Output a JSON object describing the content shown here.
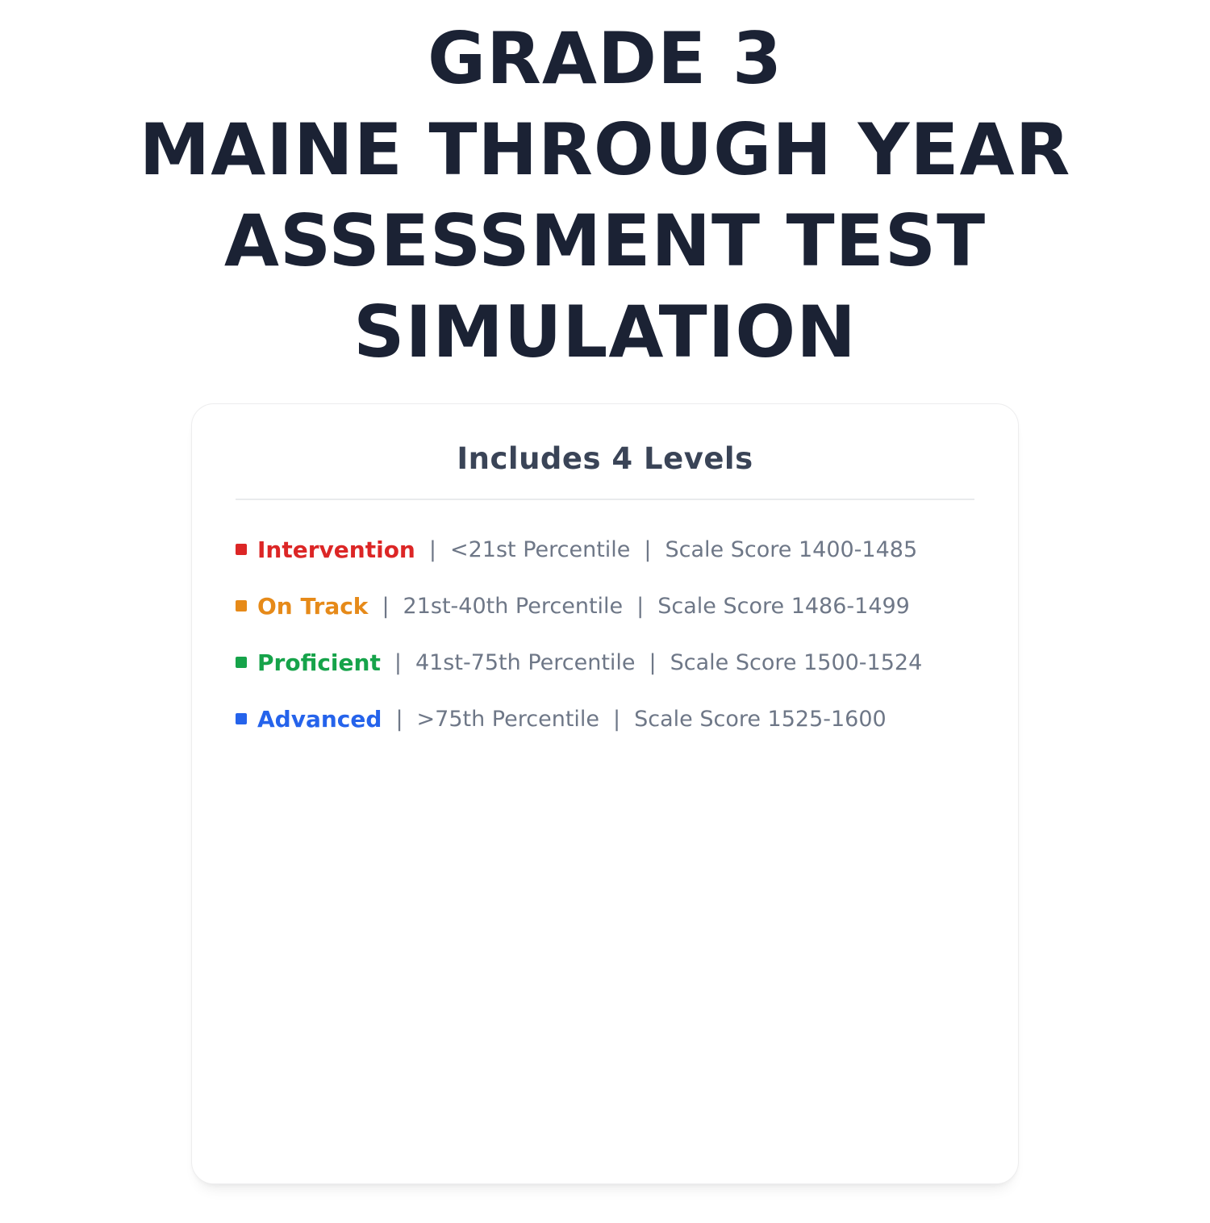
{
  "title": {
    "lines": [
      "GRADE 3",
      "MAINE THROUGH YEAR",
      "ASSESSMENT TEST",
      "SIMULATION"
    ]
  },
  "colors": {
    "title_text": "#1b2234",
    "heading_text": "#3a4457",
    "body_gray": "#6e7787",
    "divider": "#e9ebed",
    "card_border": "#ededee"
  },
  "card": {
    "heading": "Includes 4 Levels",
    "separator": "|",
    "levels": [
      {
        "label": "Intervention",
        "color": "#dc2626",
        "percentile": "<21st Percentile",
        "scale": "Scale Score 1400-1485"
      },
      {
        "label": "On Track",
        "color": "#e68a19",
        "percentile": "21st-40th Percentile",
        "scale": "Scale Score 1486-1499"
      },
      {
        "label": "Proficient",
        "color": "#16a34a",
        "percentile": "41st-75th Percentile",
        "scale": "Scale Score 1500-1524"
      },
      {
        "label": "Advanced",
        "color": "#2563eb",
        "percentile": ">75th Percentile",
        "scale": "Scale Score 1525-1600"
      }
    ]
  }
}
